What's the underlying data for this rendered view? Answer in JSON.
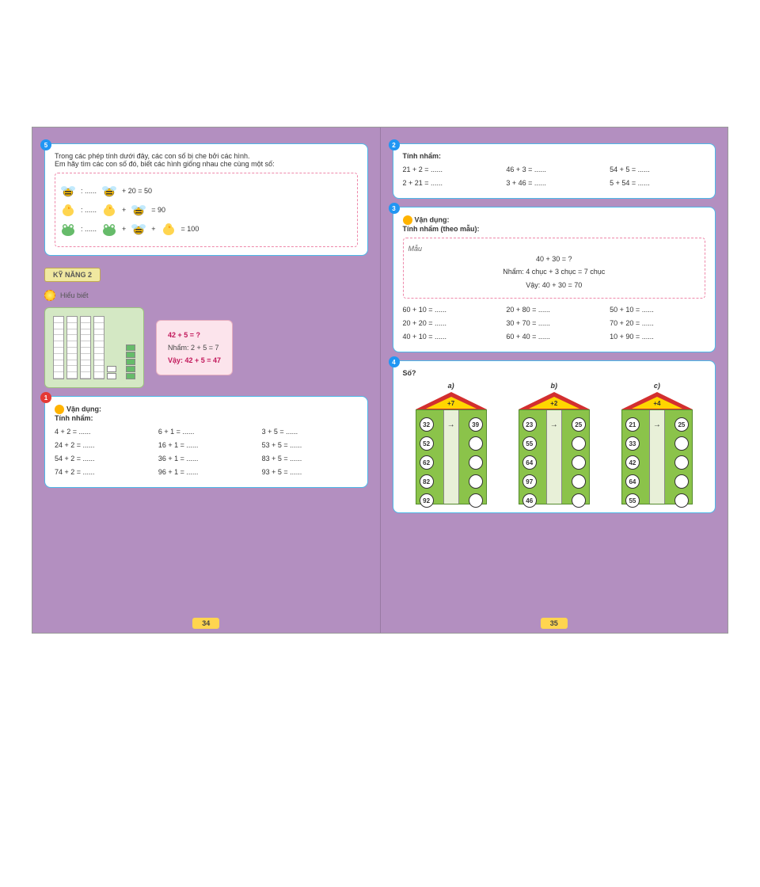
{
  "left": {
    "ex5": {
      "badge": "5",
      "line1": "Trong các phép tính dưới đây, các con số bị che bởi các hình.",
      "line2": "Em hãy tìm các con số đó, biết các hình giống nhau che cùng một số:",
      "eq1_mid": "+      20     =   50",
      "eq2_mid": "=   90",
      "eq3_mid": "=   100"
    },
    "skill_label": "KỸ NĂNG 2",
    "hint_label": "Hiểu biết",
    "pink": {
      "q": "42 + 5 = ?",
      "step": "Nhẩm: 2 + 5 = 7",
      "ans": "Vậy: 42 + 5 = 47"
    },
    "ex1": {
      "badge": "1",
      "title_icon": "Vận dụng:",
      "subtitle": "Tính nhẩm:",
      "col1": [
        "4 + 2 = ......",
        "24 + 2 = ......",
        "54 + 2 = ......",
        "74 + 2 = ......"
      ],
      "col2": [
        "6 + 1 = ......",
        "16 + 1 = ......",
        "36 + 1 = ......",
        "96 + 1 = ......"
      ],
      "col3": [
        "3 + 5 = ......",
        "53 + 5 = ......",
        "83 + 5 = ......",
        "93 + 5 = ......"
      ]
    },
    "pagenum": "34"
  },
  "right": {
    "ex2": {
      "badge": "2",
      "title": "Tính nhẩm:",
      "col1": [
        "21 + 2 = ......",
        "2 + 21 = ......"
      ],
      "col2": [
        "46 + 3 = ......",
        "3 + 46 = ......"
      ],
      "col3": [
        "54 + 5 = ......",
        "5 + 54 = ......"
      ]
    },
    "ex3": {
      "badge": "3",
      "title": "Vận dụng:",
      "subtitle": "Tính nhẩm (theo mẫu):",
      "mau_label": "Mẫu",
      "mau1": "40 + 30 = ?",
      "mau2": "Nhẩm: 4 chục + 3 chục = 7 chục",
      "mau3": "Vậy: 40 + 30 = 70",
      "col1": [
        "60 + 10 = ......",
        "20 + 20 = ......",
        "40 + 10 = ......"
      ],
      "col2": [
        "20 + 80 = ......",
        "30 + 70 = ......",
        "60 + 40 = ......"
      ],
      "col3": [
        "50 + 10 = ......",
        "70 + 20 = ......",
        "10 + 90 = ......"
      ]
    },
    "ex4": {
      "badge": "4",
      "title": "Số?",
      "houses": [
        {
          "label": "a)",
          "roof": "+7",
          "rows": [
            [
              "32",
              "39"
            ],
            [
              "52",
              ""
            ],
            [
              "62",
              ""
            ],
            [
              "82",
              ""
            ],
            [
              "92",
              ""
            ]
          ]
        },
        {
          "label": "b)",
          "roof": "+2",
          "rows": [
            [
              "23",
              "25"
            ],
            [
              "55",
              ""
            ],
            [
              "64",
              ""
            ],
            [
              "97",
              ""
            ],
            [
              "46",
              ""
            ]
          ]
        },
        {
          "label": "c)",
          "roof": "+4",
          "rows": [
            [
              "21",
              "25"
            ],
            [
              "33",
              ""
            ],
            [
              "42",
              ""
            ],
            [
              "64",
              ""
            ],
            [
              "55",
              ""
            ]
          ]
        }
      ]
    },
    "pagenum": "35"
  }
}
